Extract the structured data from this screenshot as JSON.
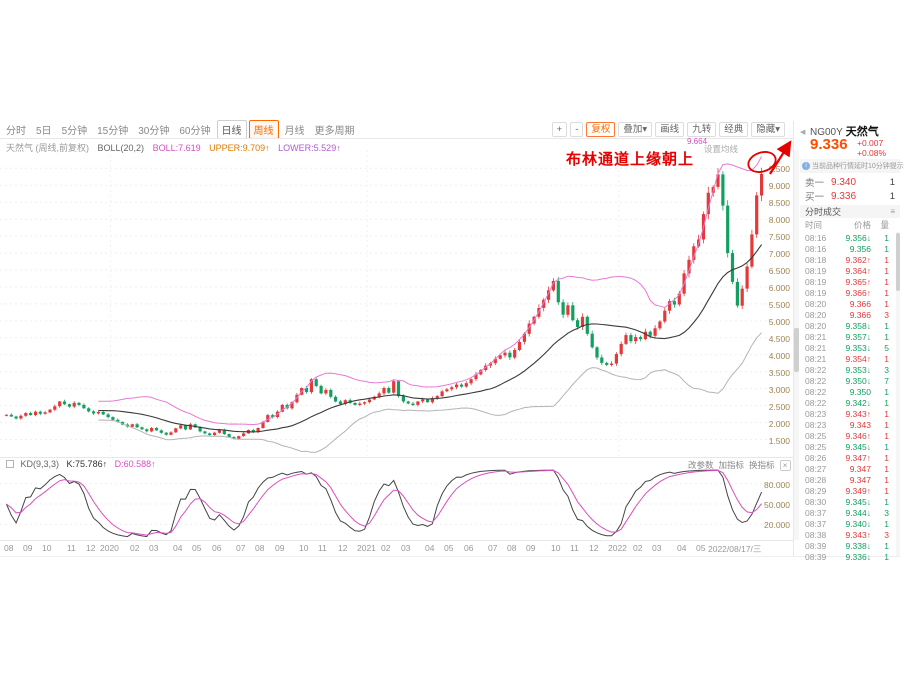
{
  "colors": {
    "up": "#e23a3a",
    "down": "#11a05f",
    "band": "#e879d6",
    "mid": "#3a3a3a",
    "kd_k": "#444444",
    "kd_d": "#d94fc0",
    "accent": "#ff6a00",
    "annotation": "#e60000",
    "ytick": "#a08555",
    "price": "#ff4d00"
  },
  "toolbar": {
    "periods": [
      {
        "label": "分时"
      },
      {
        "label": "5日"
      },
      {
        "label": "5分钟"
      },
      {
        "label": "15分钟"
      },
      {
        "label": "30分钟"
      },
      {
        "label": "60分钟"
      },
      {
        "label": "日线",
        "boxed": true
      },
      {
        "label": "周线",
        "active": true
      },
      {
        "label": "月线"
      },
      {
        "label": "更多周期"
      }
    ],
    "active_period": "周线",
    "tools": [
      {
        "label": "+"
      },
      {
        "label": "-"
      },
      {
        "label": "复权",
        "accent": true
      },
      {
        "label": "叠加▾"
      },
      {
        "label": "画线"
      },
      {
        "label": "九转"
      },
      {
        "label": "经典"
      },
      {
        "label": "隐藏▾"
      }
    ]
  },
  "chart_header": {
    "title": "天然气 (周线,前复权)",
    "indicator": "BOLL(20,2)",
    "boll": "BOLL:7.619",
    "upper": "UPPER:9.709↑",
    "lower": "LOWER:5.529↑",
    "ma_settings": "设置均线",
    "peak_label": "9.664"
  },
  "annotation": {
    "text": "布林通道上缘朝上"
  },
  "kd_header": {
    "name": "KD(9,3,3)",
    "k": "K:75.786↑",
    "d": "D:60.588↑",
    "actions": [
      "改参数",
      "加指标",
      "换指标",
      "×"
    ]
  },
  "quote_panel": {
    "collapse_icon": "◀",
    "symbol": "NG00Y",
    "name": "天然气",
    "price": "9.336",
    "change": "+0.007",
    "change_pct": "+0.08%",
    "notice": "当前品种行情延时10分钟提示",
    "notice_icon": "i",
    "ask_label": "卖一",
    "ask_price": "9.340",
    "ask_vol": "1",
    "bid_label": "买一",
    "bid_price": "9.336",
    "bid_vol": "1",
    "ticks_title": "分时成交",
    "ticks_icon": "≡",
    "tick_headers": [
      "时间",
      "价格",
      "量"
    ],
    "ticks": [
      [
        "08:16",
        "9.356↓",
        "1",
        "d"
      ],
      [
        "08:16",
        "9.356",
        "1",
        "d"
      ],
      [
        "08:18",
        "9.362↑",
        "1",
        "u"
      ],
      [
        "08:19",
        "9.364↑",
        "1",
        "u"
      ],
      [
        "08:19",
        "9.365↑",
        "1",
        "u"
      ],
      [
        "08:19",
        "9.366↑",
        "1",
        "u"
      ],
      [
        "08:20",
        "9.366",
        "1",
        "u"
      ],
      [
        "08:20",
        "9.366",
        "3",
        "u"
      ],
      [
        "08:20",
        "9.358↓",
        "1",
        "d"
      ],
      [
        "08:21",
        "9.357↓",
        "1",
        "d"
      ],
      [
        "08:21",
        "9.353↓",
        "5",
        "d"
      ],
      [
        "08:21",
        "9.354↑",
        "1",
        "u"
      ],
      [
        "08:22",
        "9.353↓",
        "3",
        "d"
      ],
      [
        "08:22",
        "9.350↓",
        "7",
        "d"
      ],
      [
        "08:22",
        "9.350",
        "1",
        "d"
      ],
      [
        "08:22",
        "9.342↓",
        "1",
        "d"
      ],
      [
        "08:23",
        "9.343↑",
        "1",
        "u"
      ],
      [
        "08:23",
        "9.343",
        "1",
        "u"
      ],
      [
        "08:25",
        "9.346↑",
        "1",
        "u"
      ],
      [
        "08:25",
        "9.345↓",
        "1",
        "d"
      ],
      [
        "08:26",
        "9.347↑",
        "1",
        "u"
      ],
      [
        "08:27",
        "9.347",
        "1",
        "u"
      ],
      [
        "08:28",
        "9.347",
        "1",
        "u"
      ],
      [
        "08:29",
        "9.349↑",
        "1",
        "u"
      ],
      [
        "08:30",
        "9.345↓",
        "1",
        "d"
      ],
      [
        "08:37",
        "9.344↓",
        "3",
        "d"
      ],
      [
        "08:37",
        "9.340↓",
        "1",
        "d"
      ],
      [
        "08:38",
        "9.343↑",
        "3",
        "u"
      ],
      [
        "08:39",
        "9.338↓",
        "1",
        "d"
      ],
      [
        "08:39",
        "9.336↓",
        "1",
        "d"
      ]
    ]
  },
  "chart_data": {
    "type": "candlestick",
    "symbol": "NG00Y 天然气",
    "period": "周线",
    "adjust": "前复权",
    "date_range": "2019/08 - 2022/08/17",
    "last_price": 9.336,
    "change": 0.007,
    "change_pct": "+0.08%",
    "boll": {
      "period": 20,
      "mult": 2,
      "mid": 7.619,
      "upper": 9.709,
      "lower": 5.529
    },
    "kd": {
      "k": 75.786,
      "d": 60.588,
      "y_ticks": [
        "80.000",
        "50.000",
        "20.000"
      ]
    },
    "ylim": [
      1.0,
      10.04
    ],
    "y_ticks": [
      "9.500",
      "9.000",
      "8.500",
      "8.000",
      "7.500",
      "7.000",
      "6.500",
      "6.000",
      "5.500",
      "5.000",
      "4.500",
      "4.000",
      "3.500",
      "3.000",
      "2.500",
      "2.000",
      "1.500"
    ],
    "closes": [
      2.23,
      2.18,
      2.12,
      2.2,
      2.28,
      2.22,
      2.32,
      2.26,
      2.3,
      2.38,
      2.48,
      2.62,
      2.54,
      2.47,
      2.58,
      2.52,
      2.42,
      2.33,
      2.27,
      2.31,
      2.24,
      2.16,
      2.08,
      2.02,
      1.94,
      1.88,
      1.95,
      1.86,
      1.8,
      1.74,
      1.84,
      1.77,
      1.7,
      1.64,
      1.71,
      1.83,
      1.92,
      1.8,
      1.95,
      1.86,
      1.74,
      1.68,
      1.63,
      1.7,
      1.79,
      1.66,
      1.57,
      1.52,
      1.6,
      1.68,
      1.78,
      1.72,
      1.84,
      2.02,
      2.22,
      2.16,
      2.32,
      2.52,
      2.42,
      2.6,
      2.82,
      3.02,
      2.9,
      3.28,
      3.08,
      2.86,
      2.96,
      2.76,
      2.62,
      2.55,
      2.66,
      2.58,
      2.52,
      2.56,
      2.6,
      2.68,
      2.76,
      2.86,
      3.02,
      2.88,
      3.22,
      2.78,
      2.62,
      2.56,
      2.52,
      2.62,
      2.68,
      2.6,
      2.72,
      2.78,
      2.92,
      2.98,
      3.04,
      3.12,
      3.06,
      3.16,
      3.28,
      3.42,
      3.55,
      3.68,
      3.75,
      3.88,
      3.98,
      4.06,
      3.92,
      4.14,
      4.38,
      4.62,
      4.92,
      5.12,
      5.38,
      5.62,
      5.9,
      6.18,
      5.55,
      5.18,
      5.46,
      5.02,
      4.82,
      5.12,
      4.62,
      4.22,
      3.92,
      3.76,
      3.7,
      3.74,
      4.02,
      4.32,
      4.58,
      4.4,
      4.52,
      4.46,
      4.68,
      4.56,
      4.78,
      4.98,
      5.3,
      5.58,
      5.48,
      5.8,
      6.4,
      6.8,
      7.2,
      7.4,
      8.15,
      8.78,
      8.95,
      9.32,
      8.4,
      7.0,
      6.15,
      5.45,
      5.95,
      6.6,
      7.55,
      8.7,
      9.336
    ],
    "x_labels": [
      {
        "t": "08",
        "i": 1
      },
      {
        "t": "09",
        "i": 5
      },
      {
        "t": "10",
        "i": 9
      },
      {
        "t": "11",
        "i": 14
      },
      {
        "t": "12",
        "i": 18
      },
      {
        "t": "2020",
        "i": 22
      },
      {
        "t": "02",
        "i": 27
      },
      {
        "t": "03",
        "i": 31
      },
      {
        "t": "04",
        "i": 36
      },
      {
        "t": "05",
        "i": 40
      },
      {
        "t": "06",
        "i": 44
      },
      {
        "t": "07",
        "i": 49
      },
      {
        "t": "08",
        "i": 53
      },
      {
        "t": "09",
        "i": 57
      },
      {
        "t": "10",
        "i": 62
      },
      {
        "t": "11",
        "i": 66
      },
      {
        "t": "12",
        "i": 70
      },
      {
        "t": "2021",
        "i": 75
      },
      {
        "t": "02",
        "i": 79
      },
      {
        "t": "03",
        "i": 83
      },
      {
        "t": "04",
        "i": 88
      },
      {
        "t": "05",
        "i": 92
      },
      {
        "t": "06",
        "i": 96
      },
      {
        "t": "07",
        "i": 101
      },
      {
        "t": "08",
        "i": 105
      },
      {
        "t": "09",
        "i": 109
      },
      {
        "t": "10",
        "i": 114
      },
      {
        "t": "11",
        "i": 118
      },
      {
        "t": "12",
        "i": 122
      },
      {
        "t": "2022",
        "i": 127
      },
      {
        "t": "02",
        "i": 131
      },
      {
        "t": "03",
        "i": 135
      },
      {
        "t": "04",
        "i": 140
      },
      {
        "t": "05",
        "i": 144
      },
      {
        "t": "2022/08/17/三",
        "i": 150
      }
    ]
  }
}
